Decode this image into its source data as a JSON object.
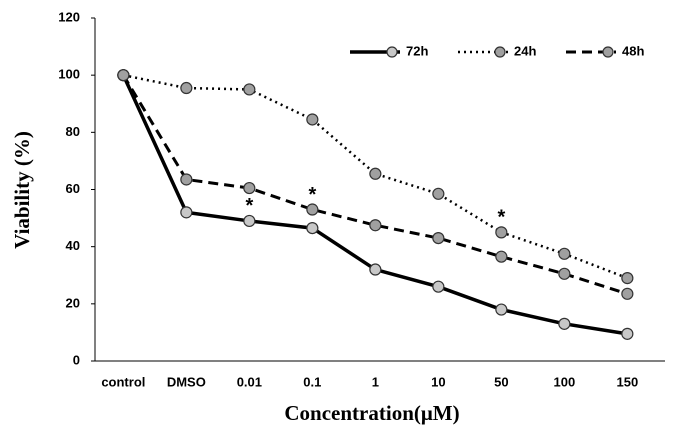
{
  "chart_data": {
    "type": "line",
    "x_label": "Concentration(μM)",
    "y_label": "Viability  (%)",
    "categories": [
      "control",
      "DMSO",
      "0.01",
      "0.1",
      "1",
      "10",
      "50",
      "100",
      "150"
    ],
    "series": [
      {
        "name": "72h",
        "color": "#000000",
        "marker_fill": "#c8c8c8",
        "style": "solid",
        "values": [
          100,
          52,
          49,
          46.5,
          32,
          26,
          18,
          13,
          9.5
        ]
      },
      {
        "name": "24h",
        "color": "#000000",
        "marker_fill": "#a0a0a0",
        "style": "dotted",
        "values": [
          100,
          95.5,
          95,
          84.5,
          65.5,
          58.5,
          45,
          37.5,
          29
        ]
      },
      {
        "name": "48h",
        "color": "#000000",
        "marker_fill": "#a0a0a0",
        "style": "dashed",
        "values": [
          100,
          63.5,
          60.5,
          53,
          47.5,
          43,
          36.5,
          30.5,
          23.5
        ]
      }
    ],
    "annotations": [
      {
        "text": "*",
        "x": "0.01",
        "series": "72h"
      },
      {
        "text": "*",
        "x": "0.1",
        "series": "48h"
      },
      {
        "text": "*",
        "x": "50",
        "series": "24h"
      }
    ],
    "ylim": [
      0,
      120
    ],
    "yticks": [
      0,
      20,
      40,
      60,
      80,
      100,
      120
    ],
    "grid": false,
    "legend": "top-right"
  }
}
